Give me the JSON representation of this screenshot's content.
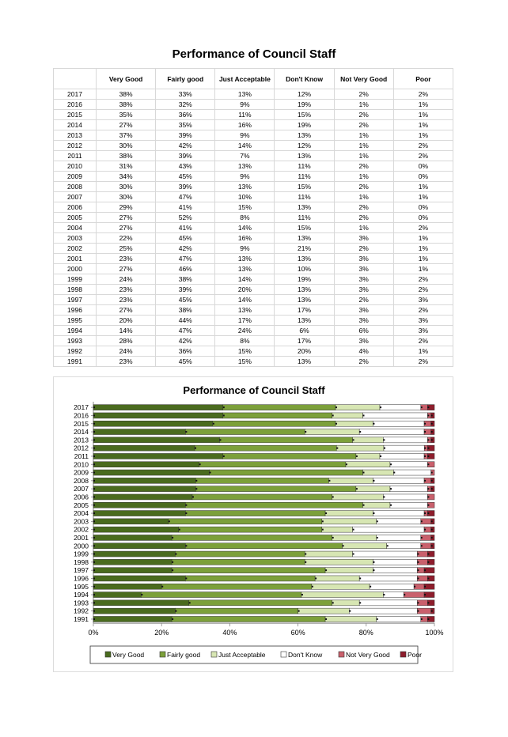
{
  "page_title": "Performance of Council Staff",
  "table": {
    "headers": [
      "",
      "Very Good",
      "Fairly good",
      "Just Acceptable",
      "Don't Know",
      "Not Very Good",
      "Poor"
    ],
    "rows": [
      [
        "2017",
        "38%",
        "33%",
        "13%",
        "12%",
        "2%",
        "2%"
      ],
      [
        "2016",
        "38%",
        "32%",
        "9%",
        "19%",
        "1%",
        "1%"
      ],
      [
        "2015",
        "35%",
        "36%",
        "11%",
        "15%",
        "2%",
        "1%"
      ],
      [
        "2014",
        "27%",
        "35%",
        "16%",
        "19%",
        "2%",
        "1%"
      ],
      [
        "2013",
        "37%",
        "39%",
        "9%",
        "13%",
        "1%",
        "1%"
      ],
      [
        "2012",
        "30%",
        "42%",
        "14%",
        "12%",
        "1%",
        "2%"
      ],
      [
        "2011",
        "38%",
        "39%",
        "7%",
        "13%",
        "1%",
        "2%"
      ],
      [
        "2010",
        "31%",
        "43%",
        "13%",
        "11%",
        "2%",
        "0%"
      ],
      [
        "2009",
        "34%",
        "45%",
        "9%",
        "11%",
        "1%",
        "0%"
      ],
      [
        "2008",
        "30%",
        "39%",
        "13%",
        "15%",
        "2%",
        "1%"
      ],
      [
        "2007",
        "30%",
        "47%",
        "10%",
        "11%",
        "1%",
        "1%"
      ],
      [
        "2006",
        "29%",
        "41%",
        "15%",
        "13%",
        "2%",
        "0%"
      ],
      [
        "2005",
        "27%",
        "52%",
        "8%",
        "11%",
        "2%",
        "0%"
      ],
      [
        "2004",
        "27%",
        "41%",
        "14%",
        "15%",
        "1%",
        "2%"
      ],
      [
        "2003",
        "22%",
        "45%",
        "16%",
        "13%",
        "3%",
        "1%"
      ],
      [
        "2002",
        "25%",
        "42%",
        "9%",
        "21%",
        "2%",
        "1%"
      ],
      [
        "2001",
        "23%",
        "47%",
        "13%",
        "13%",
        "3%",
        "1%"
      ],
      [
        "2000",
        "27%",
        "46%",
        "13%",
        "10%",
        "3%",
        "1%"
      ],
      [
        "1999",
        "24%",
        "38%",
        "14%",
        "19%",
        "3%",
        "2%"
      ],
      [
        "1998",
        "23%",
        "39%",
        "20%",
        "13%",
        "3%",
        "2%"
      ],
      [
        "1997",
        "23%",
        "45%",
        "14%",
        "13%",
        "2%",
        "3%"
      ],
      [
        "1996",
        "27%",
        "38%",
        "13%",
        "17%",
        "3%",
        "2%"
      ],
      [
        "1995",
        "20%",
        "44%",
        "17%",
        "13%",
        "3%",
        "3%"
      ],
      [
        "1994",
        "14%",
        "47%",
        "24%",
        "6%",
        "6%",
        "3%"
      ],
      [
        "1993",
        "28%",
        "42%",
        "8%",
        "17%",
        "3%",
        "2%"
      ],
      [
        "1992",
        "24%",
        "36%",
        "15%",
        "20%",
        "4%",
        "1%"
      ],
      [
        "1991",
        "23%",
        "45%",
        "15%",
        "13%",
        "2%",
        "2%"
      ]
    ]
  },
  "chart_data": {
    "type": "bar",
    "orientation": "horizontal",
    "stacked": "100%",
    "title": "Performance of Council Staff",
    "xlabel": "",
    "ylabel": "",
    "xlim": [
      0,
      100
    ],
    "x_ticks": [
      "0%",
      "20%",
      "40%",
      "60%",
      "80%",
      "100%"
    ],
    "legend_position": "bottom",
    "grid": false,
    "categories": [
      "2017",
      "2016",
      "2015",
      "2014",
      "2013",
      "2012",
      "2011",
      "2010",
      "2009",
      "2008",
      "2007",
      "2006",
      "2005",
      "2004",
      "2003",
      "2002",
      "2001",
      "2000",
      "1999",
      "1998",
      "1997",
      "1996",
      "1995",
      "1994",
      "1993",
      "1992",
      "1991"
    ],
    "series": [
      {
        "name": "Very Good",
        "color": "#4a6b1e",
        "values": [
          38,
          38,
          35,
          27,
          37,
          30,
          38,
          31,
          34,
          30,
          30,
          29,
          27,
          27,
          22,
          25,
          23,
          27,
          24,
          23,
          23,
          27,
          20,
          14,
          28,
          24,
          23
        ]
      },
      {
        "name": "Fairly good",
        "color": "#7ca03a",
        "values": [
          33,
          32,
          36,
          35,
          39,
          42,
          39,
          43,
          45,
          39,
          47,
          41,
          52,
          41,
          45,
          42,
          47,
          46,
          38,
          39,
          45,
          38,
          44,
          47,
          42,
          36,
          45
        ]
      },
      {
        "name": "Just Acceptable",
        "color": "#d7e6b3",
        "values": [
          13,
          9,
          11,
          16,
          9,
          14,
          7,
          13,
          9,
          13,
          10,
          15,
          8,
          14,
          16,
          9,
          13,
          13,
          14,
          20,
          14,
          13,
          17,
          24,
          8,
          15,
          15
        ]
      },
      {
        "name": "Don't Know",
        "color": "#ffffff",
        "values": [
          12,
          19,
          15,
          19,
          13,
          12,
          13,
          11,
          11,
          15,
          11,
          13,
          11,
          15,
          13,
          21,
          13,
          10,
          19,
          13,
          13,
          17,
          13,
          6,
          17,
          20,
          13
        ]
      },
      {
        "name": "Not Very Good",
        "color": "#c9606c",
        "values": [
          2,
          1,
          2,
          2,
          1,
          1,
          1,
          2,
          1,
          2,
          1,
          2,
          2,
          1,
          3,
          2,
          3,
          3,
          3,
          3,
          2,
          3,
          3,
          6,
          3,
          4,
          2
        ]
      },
      {
        "name": "Poor",
        "color": "#8e1d2c",
        "values": [
          2,
          1,
          1,
          1,
          1,
          2,
          2,
          0,
          0,
          1,
          1,
          0,
          0,
          2,
          1,
          1,
          1,
          1,
          2,
          2,
          3,
          2,
          3,
          3,
          2,
          1,
          2
        ]
      }
    ]
  }
}
